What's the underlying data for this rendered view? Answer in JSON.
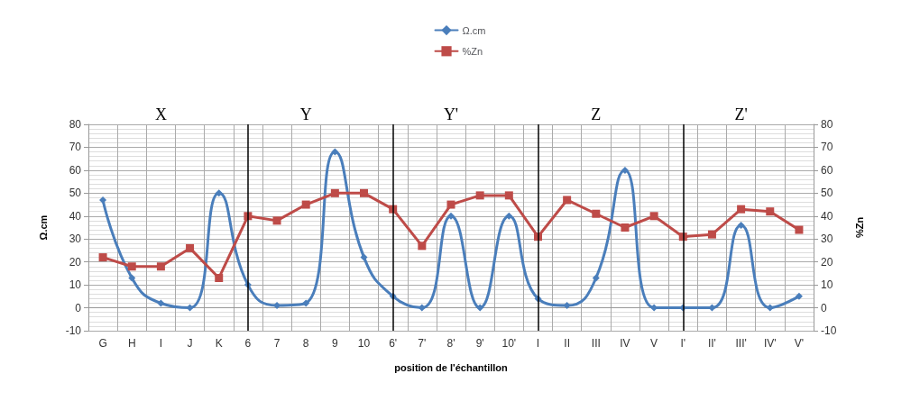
{
  "chart_data": {
    "type": "line",
    "xlabel": "position de l'échantillon",
    "ylabel": "Ω.cm",
    "y2label": "%Zn",
    "categories": [
      "G",
      "H",
      "I",
      "J",
      "K",
      "6",
      "7",
      "8",
      "9",
      "10",
      "6'",
      "7'",
      "8'",
      "9'",
      "10'",
      "I",
      "II",
      "III",
      "IV",
      "V",
      "I'",
      "II'",
      "III'",
      "IV'",
      "V'"
    ],
    "series": [
      {
        "name": "Ω.cm",
        "color": "#4a7ebb",
        "marker": "diamond",
        "values": [
          47,
          13,
          2,
          0,
          50,
          10,
          1,
          2,
          68,
          22,
          5,
          0,
          40,
          0,
          40,
          4,
          1,
          13,
          60,
          0,
          0,
          0,
          36,
          0,
          5
        ]
      },
      {
        "name": "%Zn",
        "color": "#be4b48",
        "marker": "square",
        "axis": "y2",
        "values": [
          22,
          18,
          18,
          26,
          13,
          40,
          38,
          45,
          50,
          50,
          43,
          27,
          45,
          49,
          49,
          31,
          47,
          41,
          35,
          40,
          31,
          32,
          43,
          42,
          34
        ]
      }
    ],
    "ylim": [
      -10,
      80
    ],
    "yticks": [
      -10,
      0,
      10,
      20,
      30,
      40,
      50,
      60,
      70,
      80
    ],
    "y2lim": [
      -10,
      80
    ],
    "y2ticks": [
      -10,
      0,
      10,
      20,
      30,
      40,
      50,
      60,
      70,
      80
    ],
    "annotations": [
      "X",
      "Y",
      "Y'",
      "Z",
      "Z'"
    ],
    "grid": true,
    "legend": "top"
  }
}
